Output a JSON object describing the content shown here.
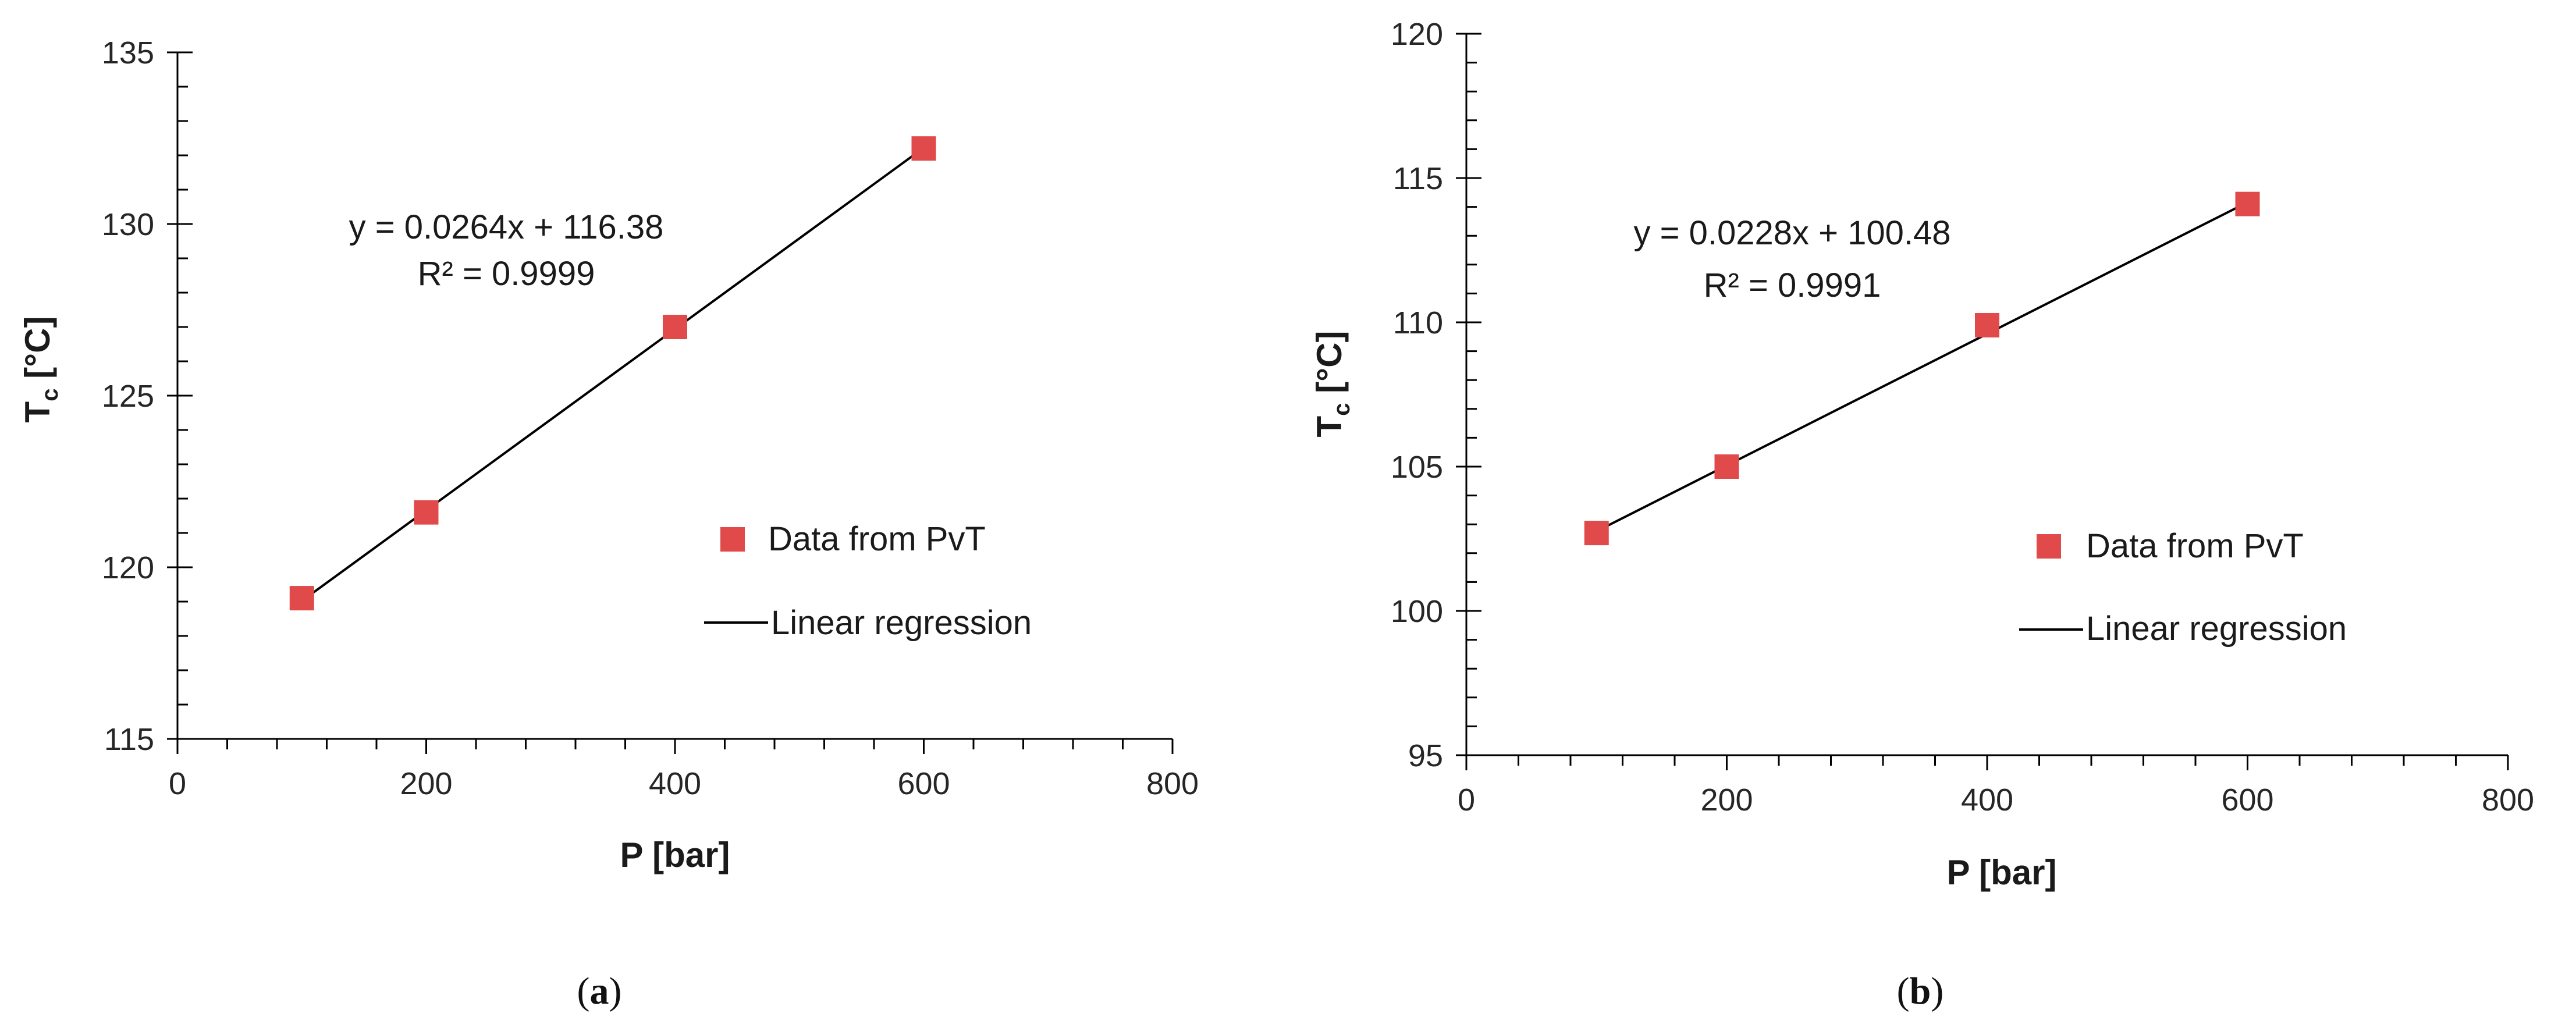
{
  "chart_data": [
    {
      "type": "scatter",
      "panel_label": "a",
      "xlabel": "P [bar]",
      "ylabel_main": "T",
      "ylabel_sub": "c",
      "ylabel_unit": " [°C]",
      "xlim": [
        0,
        800
      ],
      "ylim": [
        115,
        135
      ],
      "xticks": [
        0,
        200,
        400,
        600,
        800
      ],
      "yticks": [
        115,
        120,
        125,
        130,
        135
      ],
      "x_minor_step": 40,
      "y_minor_step": 1,
      "series": [
        {
          "name": "Data from PvT",
          "marker": "square",
          "color": "#e04a4a",
          "x": [
            100,
            200,
            400,
            600
          ],
          "y": [
            119.1,
            121.6,
            127.0,
            132.2
          ]
        },
        {
          "name": "Linear regression",
          "type": "line",
          "color": "#000000",
          "slope": 0.0264,
          "intercept": 116.38,
          "x_range": [
            100,
            600
          ]
        }
      ],
      "equation": "y = 0.0264x + 116.38",
      "r_squared": "R² = 0.9999",
      "legend_location": "center-right"
    },
    {
      "type": "scatter",
      "panel_label": "b",
      "xlabel": "P [bar]",
      "ylabel_main": "T",
      "ylabel_sub": "c",
      "ylabel_unit": " [°C]",
      "xlim": [
        0,
        800
      ],
      "ylim": [
        95,
        120
      ],
      "xticks": [
        0,
        200,
        400,
        600,
        800
      ],
      "yticks": [
        95,
        100,
        105,
        110,
        115,
        120
      ],
      "x_minor_step": 40,
      "y_minor_step": 1,
      "series": [
        {
          "name": "Data from PvT",
          "marker": "square",
          "color": "#e04a4a",
          "x": [
            100,
            200,
            400,
            600
          ],
          "y": [
            102.7,
            105.0,
            109.9,
            114.1
          ]
        },
        {
          "name": "Linear regression",
          "type": "line",
          "color": "#000000",
          "slope": 0.0228,
          "intercept": 100.48,
          "x_range": [
            100,
            600
          ]
        }
      ],
      "equation": "y = 0.0228x + 100.48",
      "r_squared": "R² = 0.9991",
      "legend_location": "center-right"
    }
  ],
  "captions": [
    {
      "open": "(",
      "label": "a",
      "close": ")"
    },
    {
      "open": "(",
      "label": "b",
      "close": ")"
    }
  ]
}
